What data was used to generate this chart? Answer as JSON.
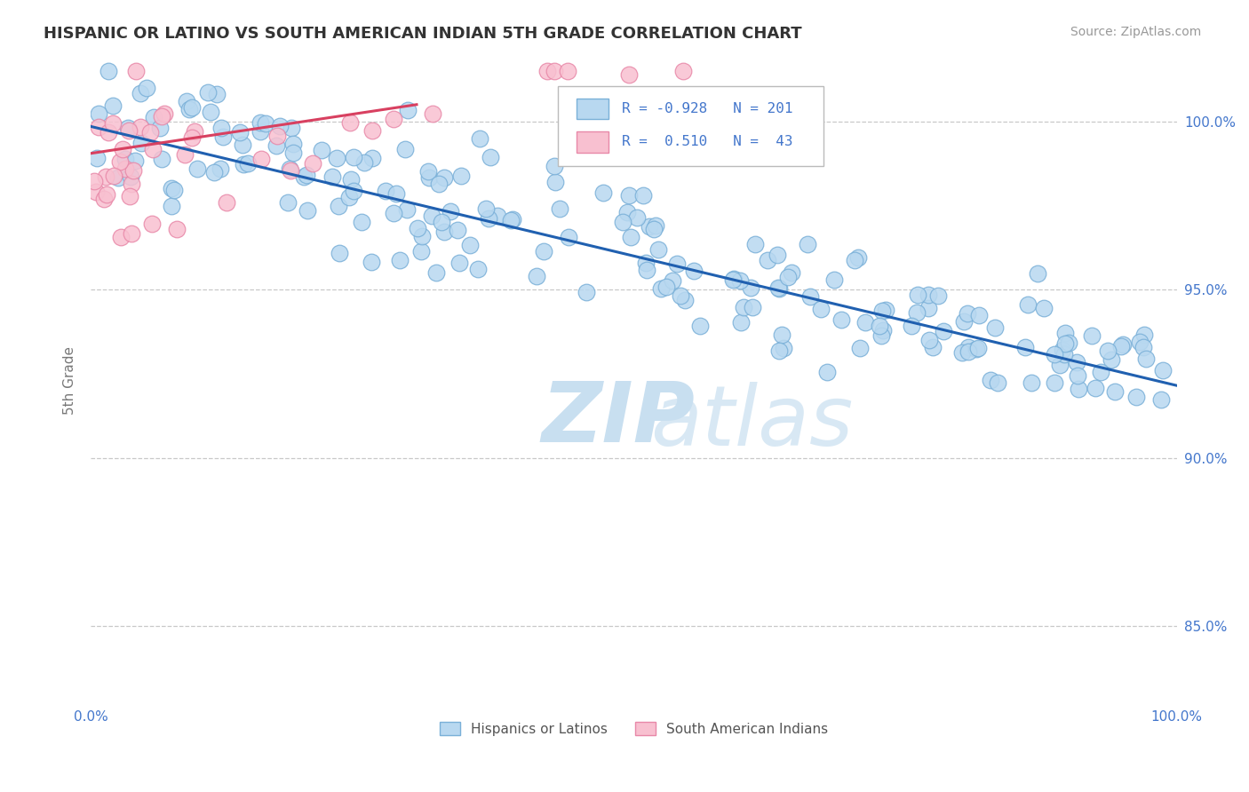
{
  "title": "HISPANIC OR LATINO VS SOUTH AMERICAN INDIAN 5TH GRADE CORRELATION CHART",
  "source": "Source: ZipAtlas.com",
  "ylabel": "5th Grade",
  "watermark_zip": "ZIP",
  "watermark_atlas": "atlas",
  "xmin": 0.0,
  "xmax": 1.0,
  "ymin": 0.828,
  "ymax": 1.018,
  "ytick_labels": [
    "85.0%",
    "90.0%",
    "95.0%",
    "100.0%"
  ],
  "ytick_values": [
    0.85,
    0.9,
    0.95,
    1.0
  ],
  "xtick_labels": [
    "0.0%",
    "100.0%"
  ],
  "xtick_values": [
    0.0,
    1.0
  ],
  "blue_color": "#b8d8f0",
  "blue_edge": "#7ab0d8",
  "pink_color": "#f8c0d0",
  "pink_edge": "#e888a8",
  "line_blue": "#2060b0",
  "line_pink": "#d84060",
  "R_blue": -0.928,
  "N_blue": 201,
  "R_pink": 0.51,
  "N_pink": 43,
  "legend_label_blue": "Hispanics or Latinos",
  "legend_label_pink": "South American Indians",
  "title_fontsize": 13,
  "source_fontsize": 10,
  "watermark_color_zip": "#c8dff0",
  "watermark_color_atlas": "#c8dff0",
  "background_color": "#ffffff",
  "grid_color": "#c8c8c8",
  "label_color": "#4477cc",
  "ylabel_color": "#777777",
  "blue_line_start_y": 0.9985,
  "blue_line_end_y": 0.9215,
  "pink_line_start_y": 0.9905,
  "pink_line_end_x": 0.3,
  "pink_line_end_y": 1.005
}
